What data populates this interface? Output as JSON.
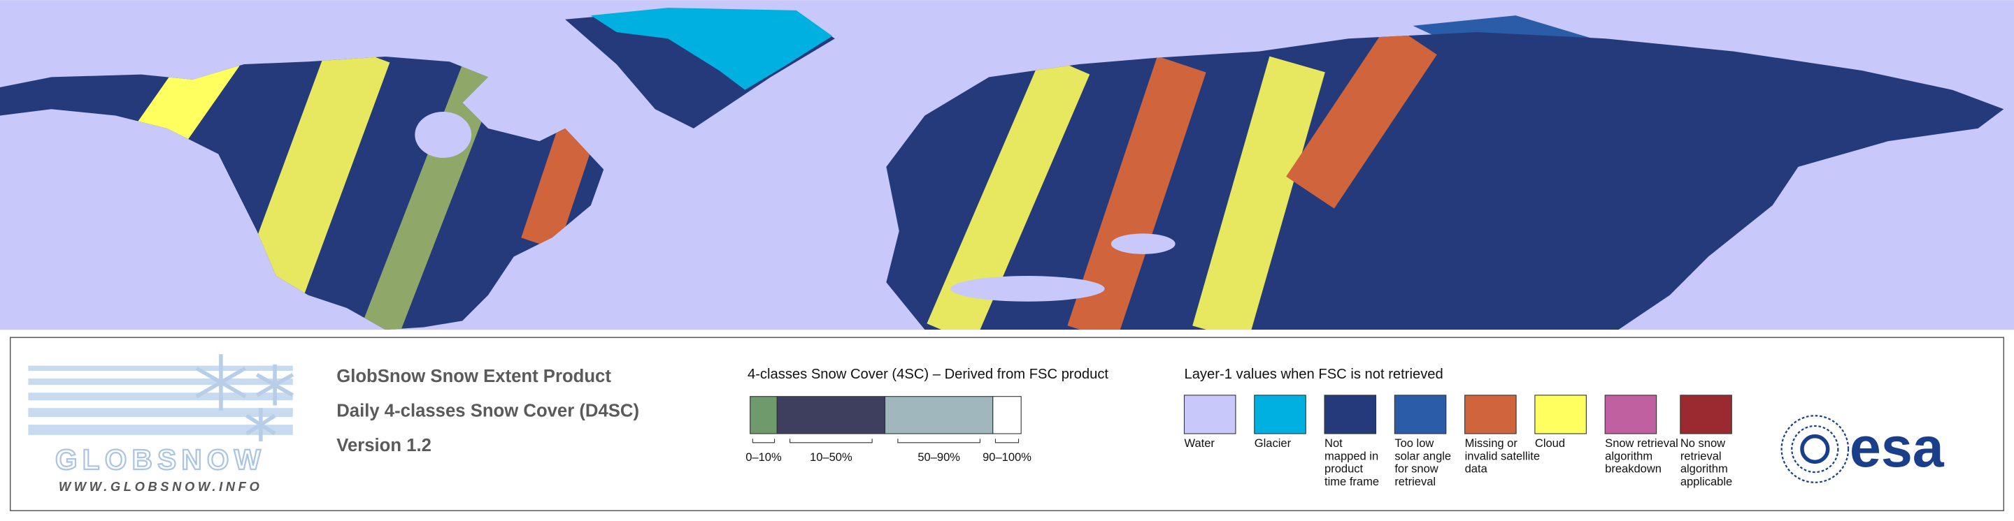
{
  "logo": {
    "wordmark": "GLOBSNOW",
    "url": "WWW.GLOBSNOW.INFO"
  },
  "product": {
    "title": "GlobSnow Snow Extent Product",
    "subtitle": "Daily 4-classes Snow Cover (D4SC)",
    "version": "Version 1.2"
  },
  "snow_cover_legend": {
    "title": "4-classes Snow Cover (4SC) – Derived from FSC product",
    "classes": [
      {
        "label": "0–10%",
        "color": "#6f9a6c"
      },
      {
        "label": "10–50%",
        "color": "#3e3e5e"
      },
      {
        "label": "50–90%",
        "color": "#a0b8bd"
      },
      {
        "label": "90–100%",
        "color": "#ffffff"
      }
    ]
  },
  "layer1_legend": {
    "title": "Layer-1 values when FSC is not retrieved",
    "items": [
      {
        "label": [
          "Water"
        ],
        "color": "#c8c8fa"
      },
      {
        "label": [
          "Glacier"
        ],
        "color": "#00b0e0"
      },
      {
        "label": [
          "Not",
          "mapped in",
          "product",
          "time frame"
        ],
        "color": "#253a7a"
      },
      {
        "label": [
          "Too low",
          "solar angle",
          "for snow",
          "retrieval"
        ],
        "color": "#2a5ca8"
      },
      {
        "label": [
          "Missing or",
          "invalid satellite",
          "data"
        ],
        "color": "#d0643c"
      },
      {
        "label": [
          "Cloud"
        ],
        "color": "#ffff60"
      },
      {
        "label": [
          "Snow retrieval",
          "algorithm",
          "breakdown"
        ],
        "color": "#c060a0"
      },
      {
        "label": [
          "No snow",
          "retrieval",
          "algorithm",
          "applicable"
        ],
        "color": "#9a2a30"
      }
    ]
  },
  "esa_logo": "esa"
}
